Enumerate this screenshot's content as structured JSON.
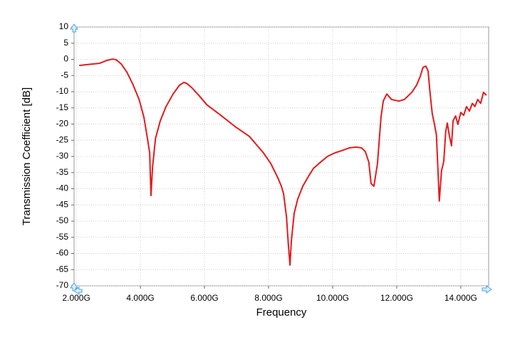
{
  "chart_data": {
    "type": "line",
    "xlabel": "Frequency",
    "ylabel": "Transmission Coefficient [dB]",
    "color": "#e41a1c",
    "grid": true,
    "xlim": [
      1.93,
      14.87
    ],
    "ylim": [
      -70,
      10
    ],
    "xticks": [
      {
        "value": 2,
        "label": "2.000G"
      },
      {
        "value": 4,
        "label": "4.000G"
      },
      {
        "value": 6,
        "label": "6.000G"
      },
      {
        "value": 8,
        "label": "8.000G"
      },
      {
        "value": 10,
        "label": "10.000G"
      },
      {
        "value": 12,
        "label": "12.000G"
      },
      {
        "value": 14,
        "label": "14.000G"
      }
    ],
    "yticks": [
      10,
      5,
      0,
      -5,
      -10,
      -15,
      -20,
      -25,
      -30,
      -35,
      -40,
      -45,
      -50,
      -55,
      -60,
      -65,
      -70
    ],
    "x": [
      2.09,
      2.73,
      2.96,
      3.13,
      3.24,
      3.4,
      3.58,
      3.76,
      3.96,
      4.11,
      4.22,
      4.29,
      4.33,
      4.38,
      4.47,
      4.62,
      4.8,
      5.02,
      5.22,
      5.36,
      5.47,
      5.62,
      5.84,
      6.07,
      6.51,
      6.96,
      7.4,
      7.84,
      8.07,
      8.29,
      8.4,
      8.47,
      8.56,
      8.62,
      8.67,
      8.71,
      8.8,
      8.91,
      9.07,
      9.22,
      9.4,
      9.62,
      9.84,
      10.07,
      10.29,
      10.51,
      10.73,
      10.91,
      11.02,
      11.13,
      11.2,
      11.29,
      11.4,
      11.51,
      11.58,
      11.69,
      11.84,
      12.07,
      12.24,
      12.47,
      12.62,
      12.73,
      12.82,
      12.91,
      12.98,
      13.04,
      13.11,
      13.18,
      13.24,
      13.33,
      13.4,
      13.47,
      13.53,
      13.58,
      13.64,
      13.71,
      13.76,
      13.84,
      13.91,
      14.0,
      14.09,
      14.18,
      14.27,
      14.36,
      14.44,
      14.53,
      14.62,
      14.71,
      14.8
    ],
    "values": [
      -1.9,
      -1.2,
      -0.3,
      0.1,
      -0.1,
      -1.4,
      -4,
      -7.6,
      -12.4,
      -17.9,
      -24.5,
      -28.9,
      -42.1,
      -33.3,
      -24.5,
      -19,
      -14.6,
      -10.7,
      -8,
      -7.1,
      -7.6,
      -8.9,
      -11.3,
      -14,
      -17.3,
      -20.8,
      -23.8,
      -28.9,
      -32.2,
      -36.6,
      -39.2,
      -41.6,
      -48.7,
      -57.5,
      -63.6,
      -56.4,
      -47.6,
      -43.2,
      -39.2,
      -36.6,
      -33.7,
      -31.8,
      -30,
      -28.9,
      -28.2,
      -27.4,
      -27.1,
      -27.4,
      -28.5,
      -31.8,
      -38.4,
      -39.2,
      -32.2,
      -17.9,
      -12.9,
      -10.7,
      -12.4,
      -12.9,
      -12.4,
      -10.2,
      -8,
      -5.4,
      -2.5,
      -2.1,
      -3.6,
      -10.2,
      -16.8,
      -20.1,
      -23.4,
      -43.8,
      -34.4,
      -31.5,
      -22.3,
      -19.7,
      -23.4,
      -26.7,
      -19,
      -17.5,
      -20.1,
      -16.4,
      -17.3,
      -14.6,
      -16,
      -13.6,
      -14.6,
      -12.4,
      -13.6,
      -10.2,
      -11.1
    ]
  }
}
